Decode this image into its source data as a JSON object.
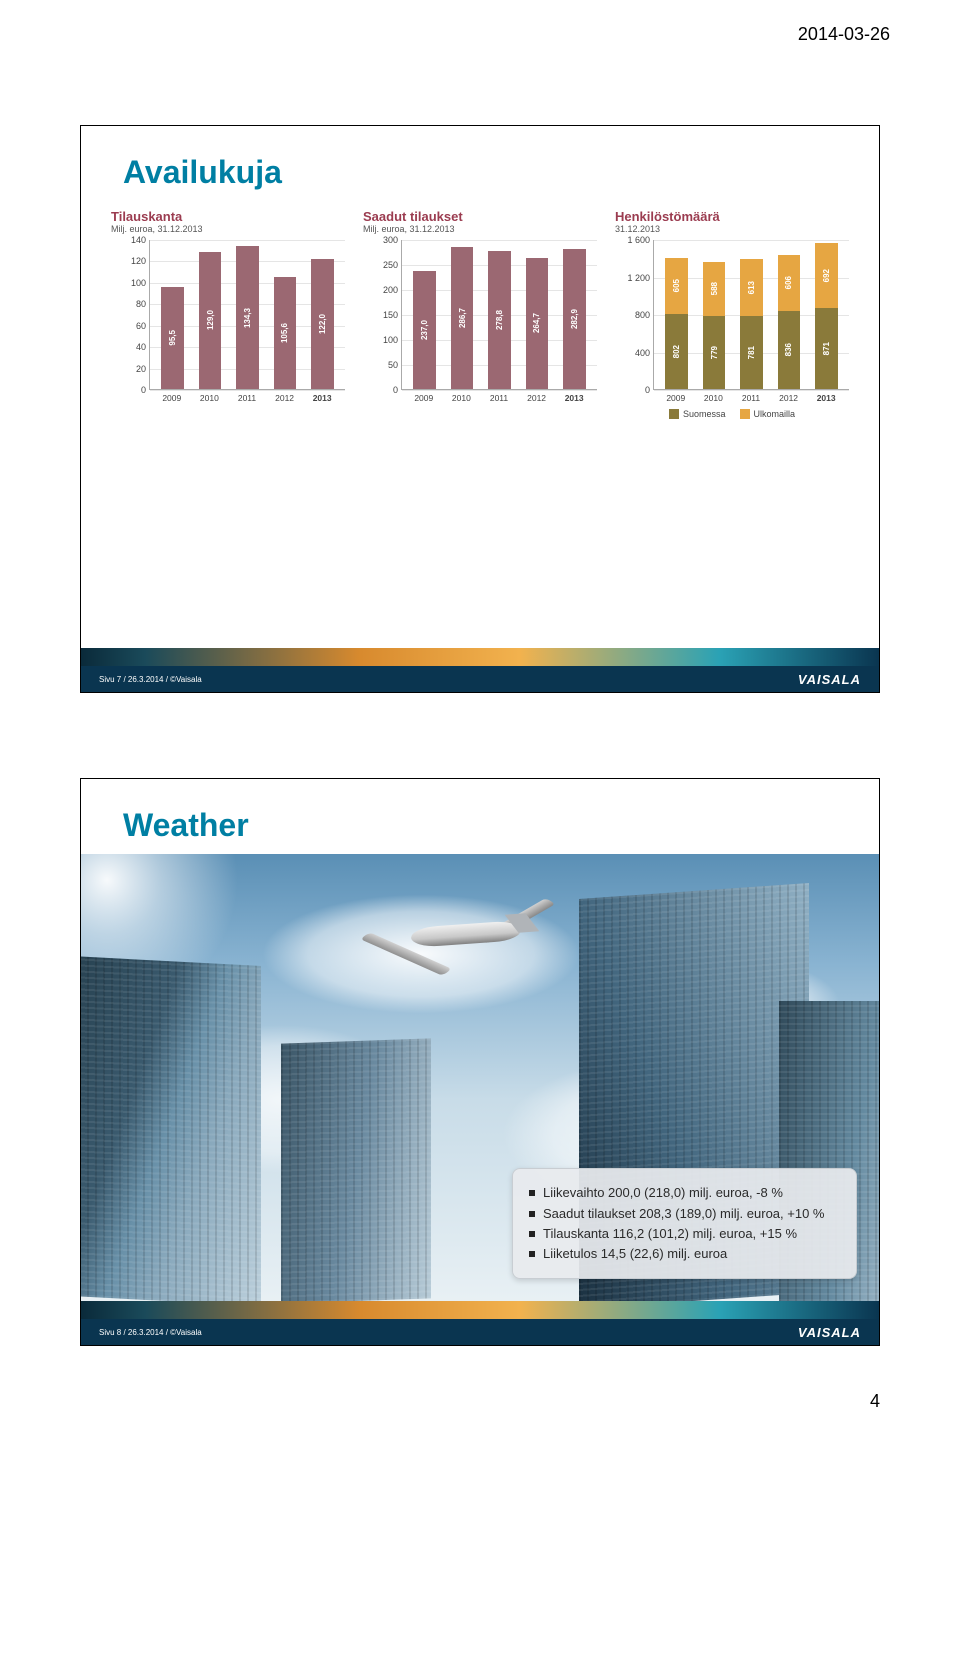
{
  "page_date": "2014-03-26",
  "page_number": "4",
  "brand": "VAISALA",
  "colors": {
    "title1": "#007fa3",
    "title2": "#007fa3",
    "chart_title": "#9b3c50",
    "bar_main": "#9b6872",
    "bar_home": "#8a7a3a",
    "bar_abroad": "#e6a642",
    "grid": "#e5e5e5"
  },
  "slide1": {
    "title": "Availukuja",
    "footer": "Sivu 7 / 26.3.2014 / ©Vaisala",
    "chart1": {
      "title": "Tilauskanta",
      "subtitle": "Milj. euroa, 31.12.2013",
      "ymax": 140,
      "yticks": [
        0,
        20,
        40,
        60,
        80,
        100,
        120,
        140
      ],
      "years": [
        "2009",
        "2010",
        "2011",
        "2012",
        "2013"
      ],
      "values": [
        95.5,
        129.0,
        134.3,
        105.6,
        122.0
      ],
      "labels": [
        "95,5",
        "129,0",
        "134,3",
        "105,6",
        "122,0"
      ]
    },
    "chart2": {
      "title": "Saadut tilaukset",
      "subtitle": "Milj. euroa, 31.12.2013",
      "ymax": 300,
      "yticks": [
        0,
        50,
        100,
        150,
        200,
        250,
        300
      ],
      "years": [
        "2009",
        "2010",
        "2011",
        "2012",
        "2013"
      ],
      "values": [
        237.0,
        286.7,
        278.8,
        264.7,
        282.9
      ],
      "labels": [
        "237,0",
        "286,7",
        "278,8",
        "264,7",
        "282,9"
      ]
    },
    "chart3": {
      "title": "Henkilöstömäärä",
      "subtitle": "31.12.2013",
      "ymax": 1600,
      "yticks": [
        0,
        400,
        800,
        1200,
        1600
      ],
      "years": [
        "2009",
        "2010",
        "2011",
        "2012",
        "2013"
      ],
      "home": [
        802,
        779,
        781,
        836,
        871
      ],
      "abroad": [
        605,
        588,
        613,
        606,
        692
      ],
      "home_labels": [
        "802",
        "779",
        "781",
        "836",
        "871"
      ],
      "abroad_labels": [
        "605",
        "588",
        "613",
        "606",
        "692"
      ],
      "legend_home": "Suomessa",
      "legend_abroad": "Ulkomailla"
    }
  },
  "slide2": {
    "title": "Weather",
    "footer": "Sivu 8 / 26.3.2014 / ©Vaisala",
    "bullets": [
      "Liikevaihto 200,0 (218,0)  milj. euroa, -8 %",
      "Saadut tilaukset 208,3 (189,0) milj. euroa, +10 %",
      "Tilauskanta 116,2 (101,2) milj. euroa, +15 %",
      "Liiketulos 14,5 (22,6) milj. euroa"
    ]
  }
}
